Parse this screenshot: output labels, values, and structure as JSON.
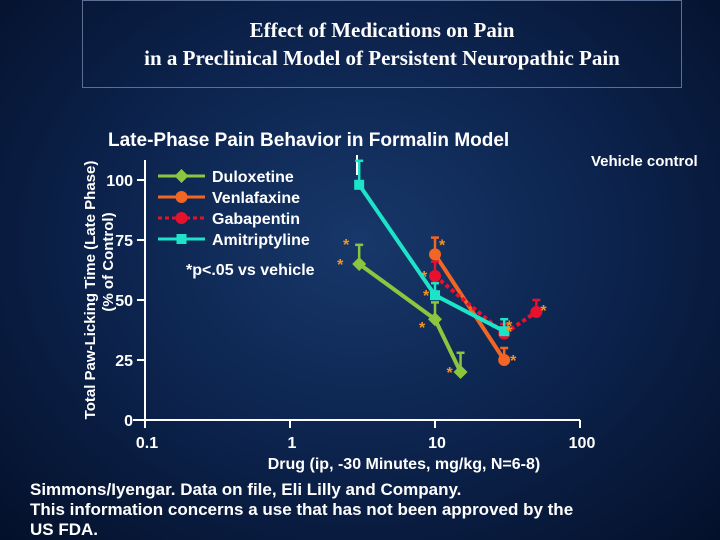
{
  "slide": {
    "title_line1": "Effect of Medications on Pain",
    "title_line2": "in a Preclinical Model of Persistent Neuropathic Pain",
    "footnote_line1": "Simmons/Iyengar. Data on file, Eli Lilly and Company.",
    "footnote_line2": "This information concerns a use that has not been approved by the",
    "footnote_line3": "US FDA."
  },
  "chart_data": {
    "type": "line",
    "title": "Late-Phase Pain Behavior in Formalin Model",
    "xlabel": "Drug (ip, -30 Minutes, mg/kg, N=6-8)",
    "ylabel_line1": "Total Paw-Licking Time (Late Phase)",
    "ylabel_line2": "(% of Control)",
    "x_scale": "log",
    "xlim": [
      0.1,
      100
    ],
    "ylim": [
      0,
      100
    ],
    "x_ticks": [
      "0.1",
      "1",
      "10",
      "100"
    ],
    "y_ticks": [
      "0",
      "25",
      "50",
      "75",
      "100"
    ],
    "grid": false,
    "legend_position": "top-left",
    "vehicle_label": "Vehicle control",
    "significance_note": "*p<.05 vs vehicle",
    "colors": {
      "axes": "#ffffff",
      "duloxetine": "#8cc63f",
      "venlafaxine": "#f26522",
      "gabapentin": "#e8112d",
      "amitriptyline": "#1de3c8",
      "asterisk": "#f7941d"
    },
    "series": [
      {
        "name": "Duloxetine",
        "color": "#8cc63f",
        "marker": "diamond",
        "dash": "solid",
        "points": [
          {
            "x": 3,
            "y": 65,
            "err": 8,
            "sig": true
          },
          {
            "x": 10,
            "y": 42,
            "err": 7,
            "sig": true
          },
          {
            "x": 15,
            "y": 20,
            "err": 8,
            "sig": true
          }
        ]
      },
      {
        "name": "Venlafaxine",
        "color": "#f26522",
        "marker": "circle",
        "dash": "solid",
        "points": [
          {
            "x": 10,
            "y": 69,
            "err": 7,
            "sig": true
          },
          {
            "x": 30,
            "y": 25,
            "err": 5,
            "sig": true
          }
        ]
      },
      {
        "name": "Gabapentin",
        "color": "#e8112d",
        "marker": "circle",
        "dash": "dotted",
        "points": [
          {
            "x": 10,
            "y": 60,
            "err": 6,
            "sig": true
          },
          {
            "x": 30,
            "y": 36,
            "err": 4,
            "sig": true
          },
          {
            "x": 50,
            "y": 45,
            "err": 5,
            "sig": true
          }
        ]
      },
      {
        "name": "Amitriptyline",
        "color": "#1de3c8",
        "marker": "square",
        "dash": "solid",
        "points": [
          {
            "x": 3,
            "y": 98,
            "err": 10,
            "sig": false
          },
          {
            "x": 10,
            "y": 52,
            "err": 5,
            "sig": true
          },
          {
            "x": 30,
            "y": 37,
            "err": 5,
            "sig": true
          }
        ]
      }
    ]
  }
}
